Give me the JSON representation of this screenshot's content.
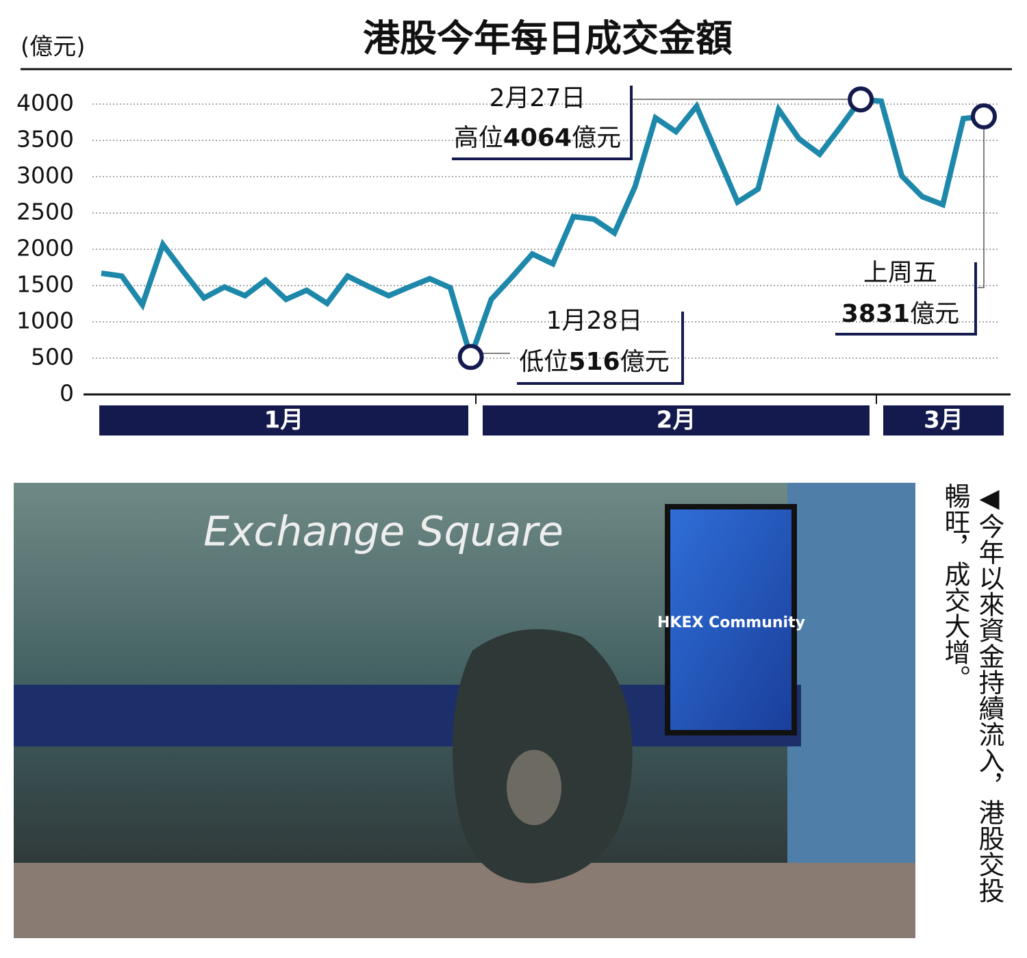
{
  "chart_data": {
    "type": "line",
    "title": "港股今年每日成交金額",
    "y_unit": "(億元)",
    "color": "#1d88aa",
    "marker_color": "#141a4e",
    "ylim": [
      0,
      4000
    ],
    "yticks": [
      0,
      500,
      1000,
      1500,
      2000,
      2500,
      3000,
      3500,
      4000
    ],
    "grid": true,
    "values": [
      1670,
      1630,
      1235,
      2065,
      1690,
      1330,
      1480,
      1360,
      1575,
      1310,
      1435,
      1255,
      1630,
      1490,
      1360,
      1480,
      1595,
      1470,
      516,
      1310,
      1615,
      1935,
      1800,
      2450,
      2415,
      2225,
      2860,
      3810,
      3620,
      3970,
      3310,
      2650,
      2830,
      3925,
      3520,
      3310,
      3680,
      4064,
      4040,
      3010,
      2725,
      2615,
      3800,
      3831
    ],
    "months": [
      "1月",
      "2月",
      "3月"
    ],
    "annotations": [
      {
        "point": 37,
        "date": "2月27日",
        "parts": [
          "高位",
          "4064",
          "億元"
        ]
      },
      {
        "point": 18,
        "date": "1月28日",
        "parts": [
          "低位",
          "516",
          "億元"
        ]
      },
      {
        "point": 43,
        "date": "上周五",
        "parts": [
          "",
          "3831",
          "億元"
        ]
      }
    ]
  },
  "photo": {
    "sign": "Exchange Square",
    "screen": "HKEX Community",
    "caption": "◀今年以來資金持續流入，港股交投暢旺，成交大增。"
  }
}
